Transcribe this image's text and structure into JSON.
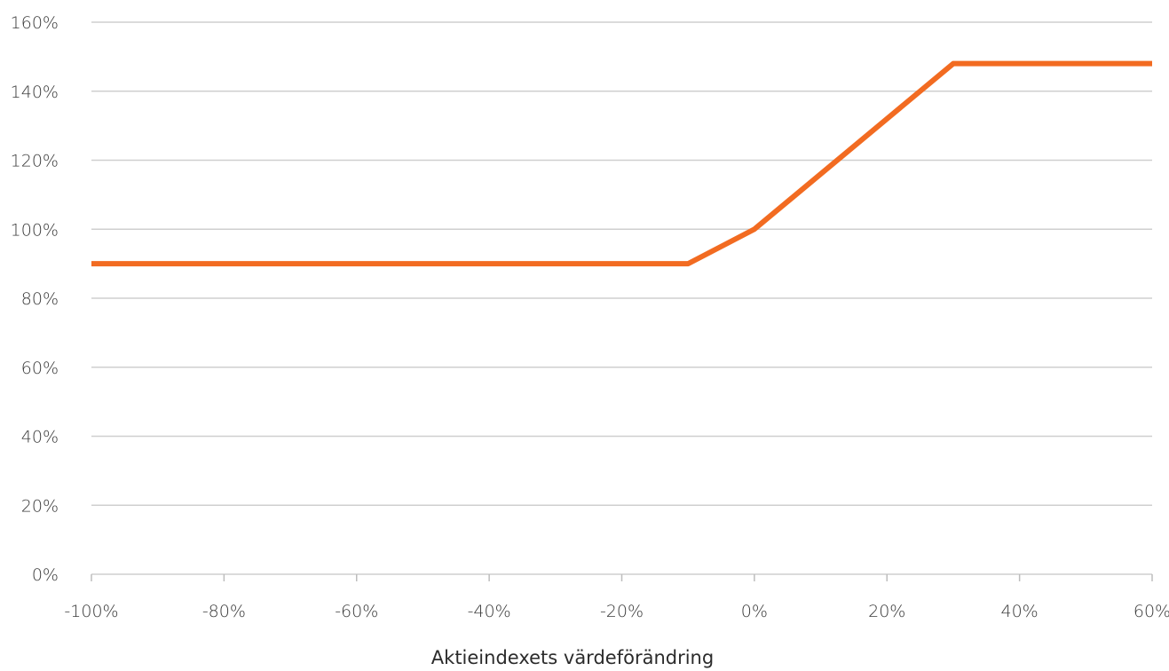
{
  "chart_data": {
    "type": "line",
    "title": "",
    "xlabel": "Aktieindexets värdeförändring",
    "ylabel": "",
    "x_unit": "%",
    "y_unit": "%",
    "xlim": [
      -100,
      60
    ],
    "ylim": [
      0,
      160
    ],
    "x_ticks": [
      -100,
      -80,
      -60,
      -40,
      -20,
      0,
      20,
      40,
      60
    ],
    "y_ticks": [
      0,
      20,
      40,
      60,
      80,
      100,
      120,
      140,
      160
    ],
    "x_tick_labels": [
      "-100%",
      "-80%",
      "-60%",
      "-40%",
      "-20%",
      "0%",
      "20%",
      "40%",
      "60%"
    ],
    "y_tick_labels": [
      "0%",
      "20%",
      "40%",
      "60%",
      "80%",
      "100%",
      "120%",
      "140%",
      "160%"
    ],
    "grid": "horizontal",
    "legend": "none",
    "series": [
      {
        "color": "#f26b21",
        "x": [
          -100,
          -10,
          0,
          30,
          60
        ],
        "y": [
          90,
          90,
          100,
          148,
          148
        ]
      }
    ]
  }
}
